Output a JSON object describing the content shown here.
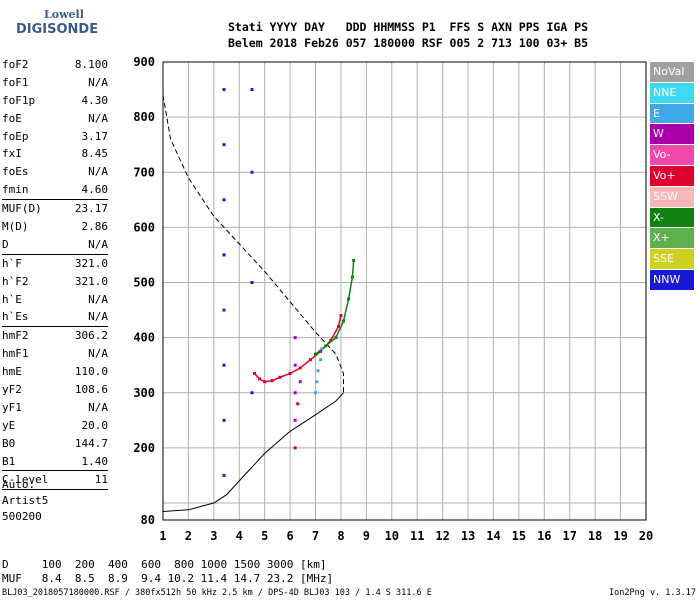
{
  "logo": {
    "top": "Lowell",
    "bottom": "DIGISONDE"
  },
  "header": {
    "line1": "Stati YYYY DAY   DDD HHMMSS P1  FFS S AXN PPS IGA PS",
    "line2": "Belem 2018 Feb26 057 180000 RSF 005 2 713 100 03+ B5"
  },
  "params": {
    "group1": [
      {
        "label": "foF2",
        "value": "8.100"
      },
      {
        "label": "foF1",
        "value": "N/A"
      },
      {
        "label": "foF1p",
        "value": "4.30"
      },
      {
        "label": "foE",
        "value": "N/A"
      },
      {
        "label": "foEp",
        "value": "3.17"
      },
      {
        "label": "fxI",
        "value": "8.45"
      },
      {
        "label": "foEs",
        "value": "N/A"
      },
      {
        "label": "fmin",
        "value": "4.60"
      }
    ],
    "group2": [
      {
        "label": "MUF(D)",
        "value": "23.17"
      },
      {
        "label": "M(D)",
        "value": "2.86"
      },
      {
        "label": "D",
        "value": "N/A"
      }
    ],
    "group3": [
      {
        "label": "h`F",
        "value": "321.0"
      },
      {
        "label": "h`F2",
        "value": "321.0"
      },
      {
        "label": "h`E",
        "value": "N/A"
      },
      {
        "label": "h`Es",
        "value": "N/A"
      }
    ],
    "group4": [
      {
        "label": "hmF2",
        "value": "306.2"
      },
      {
        "label": "hmF1",
        "value": "N/A"
      },
      {
        "label": "hmE",
        "value": "110.0"
      },
      {
        "label": "yF2",
        "value": "108.6"
      },
      {
        "label": "yF1",
        "value": "N/A"
      },
      {
        "label": "yE",
        "value": "20.0"
      },
      {
        "label": "B0",
        "value": "144.7"
      },
      {
        "label": "B1",
        "value": "1.40"
      }
    ],
    "group5": [
      {
        "label": "C-level",
        "value": "11"
      }
    ]
  },
  "auto": {
    "line1": "Auto:",
    "line2": "Artist5",
    "line3": "500200"
  },
  "legend": [
    {
      "label": "NoVal",
      "color": "#a0a0a0"
    },
    {
      "label": "NNE",
      "color": "#40d8f8"
    },
    {
      "label": "E",
      "color": "#40a8e8"
    },
    {
      "label": "W",
      "color": "#a800a8"
    },
    {
      "label": "Vo-",
      "color": "#f048a8"
    },
    {
      "label": "Vo+",
      "color": "#e00030"
    },
    {
      "label": "SSW",
      "color": "#f8b8b8"
    },
    {
      "label": "X-",
      "color": "#108010"
    },
    {
      "label": "X+",
      "color": "#60b050"
    },
    {
      "label": "SSE",
      "color": "#d0d020"
    },
    {
      "label": "NNW",
      "color": "#1818d8"
    }
  ],
  "bottom": {
    "row1": "D     100  200  400  600  800 1000 1500 3000 [km]",
    "row2": "MUF   8.4  8.5  8.9  9.4 10.2 11.4 14.7 23.2 [MHz]"
  },
  "footer": {
    "left": "BLJ03_2018057180000.RSF / 380fx512h 50 kHz 2.5 km / DPS-4D BLJ03 103 / 1.4 S 311.6 E",
    "right": "Ion2Png v. 1.3.17"
  },
  "chart_data": {
    "type": "scatter",
    "title": "",
    "xlabel": "",
    "ylabel": "",
    "xlim": [
      1,
      20
    ],
    "ylim": [
      80,
      900
    ],
    "x_ticks": [
      1,
      2,
      3,
      4,
      5,
      6,
      7,
      8,
      9,
      10,
      11,
      12,
      13,
      14,
      15,
      16,
      17,
      18,
      19,
      20
    ],
    "y_ticks": [
      80,
      100,
      200,
      300,
      400,
      500,
      600,
      700,
      800,
      900
    ],
    "y_tick_labels": [
      80,
      "",
      200,
      300,
      400,
      500,
      600,
      700,
      800,
      900
    ],
    "grid": true,
    "series": [
      {
        "label": "O-trace",
        "color": "#e00030",
        "points": [
          [
            4.6,
            335
          ],
          [
            4.8,
            325
          ],
          [
            5.0,
            320
          ],
          [
            5.3,
            322
          ],
          [
            5.6,
            328
          ],
          [
            6.0,
            335
          ],
          [
            6.4,
            345
          ],
          [
            6.8,
            360
          ],
          [
            7.2,
            375
          ],
          [
            7.6,
            395
          ],
          [
            7.9,
            420
          ],
          [
            8.0,
            440
          ]
        ]
      },
      {
        "label": "X-trace",
        "color": "#108010",
        "points": [
          [
            7.0,
            370
          ],
          [
            7.4,
            385
          ],
          [
            7.8,
            400
          ],
          [
            8.1,
            430
          ],
          [
            8.3,
            470
          ],
          [
            8.45,
            510
          ],
          [
            8.5,
            540
          ]
        ]
      },
      {
        "label": "E-trace",
        "color": "#40a8e8",
        "points": [
          [
            7.0,
            300
          ],
          [
            7.05,
            320
          ],
          [
            7.1,
            340
          ],
          [
            7.2,
            360
          ],
          [
            7.25,
            380
          ]
        ]
      },
      {
        "label": "W-columns",
        "color": "#a800a8",
        "points": [
          [
            6.2,
            200
          ],
          [
            6.2,
            250
          ],
          [
            6.2,
            300
          ],
          [
            6.2,
            350
          ],
          [
            6.2,
            400
          ],
          [
            6.3,
            280
          ],
          [
            6.4,
            320
          ]
        ]
      },
      {
        "label": "NNW-columns",
        "color": "#1818d8",
        "points": [
          [
            3.4,
            150
          ],
          [
            3.4,
            250
          ],
          [
            3.4,
            350
          ],
          [
            3.4,
            450
          ],
          [
            3.4,
            550
          ],
          [
            3.4,
            650
          ],
          [
            3.4,
            750
          ],
          [
            3.4,
            850
          ],
          [
            4.5,
            300
          ],
          [
            4.5,
            500
          ],
          [
            4.5,
            700
          ],
          [
            4.5,
            850
          ]
        ]
      }
    ],
    "profile_solid": [
      [
        1.0,
        90
      ],
      [
        2.0,
        92
      ],
      [
        3.0,
        100
      ],
      [
        3.5,
        115
      ],
      [
        4.2,
        150
      ],
      [
        5.0,
        190
      ],
      [
        6.0,
        230
      ],
      [
        7.0,
        260
      ],
      [
        7.8,
        285
      ],
      [
        8.1,
        300
      ]
    ],
    "profile_dashed": [
      [
        1.0,
        840
      ],
      [
        1.3,
        760
      ],
      [
        2.0,
        690
      ],
      [
        3.0,
        620
      ],
      [
        4.0,
        570
      ],
      [
        5.0,
        520
      ],
      [
        6.0,
        465
      ],
      [
        7.0,
        410
      ],
      [
        7.8,
        370
      ],
      [
        8.1,
        335
      ],
      [
        8.1,
        300
      ]
    ]
  }
}
